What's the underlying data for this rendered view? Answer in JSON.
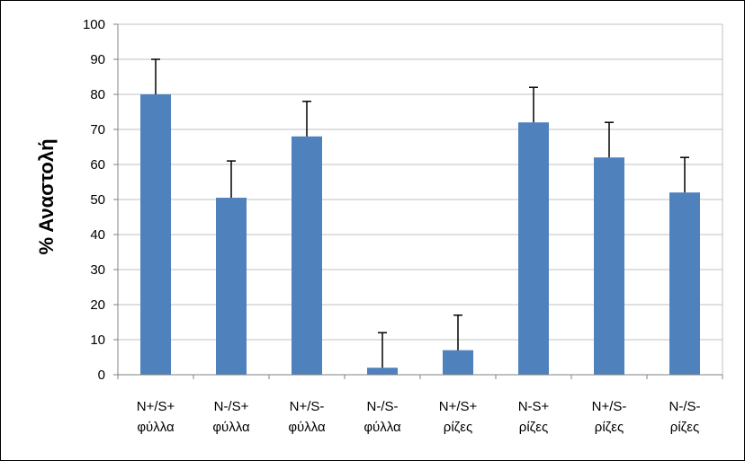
{
  "chart_data": {
    "type": "bar",
    "title": "",
    "xlabel": "",
    "ylabel": "% Αναστολή",
    "ylim": [
      0,
      100
    ],
    "yticks": [
      "0",
      "10",
      "20",
      "30",
      "40",
      "50",
      "60",
      "70",
      "80",
      "90",
      "100"
    ],
    "grid": true,
    "categories": [
      [
        "N+/S+",
        "φύλλα"
      ],
      [
        "N-/S+",
        "φύλλα"
      ],
      [
        "N+/S-",
        "φύλλα"
      ],
      [
        "N-/S-",
        "φύλλα"
      ],
      [
        "N+/S+",
        "ρίζες"
      ],
      [
        "N-S+",
        "ρίζες"
      ],
      [
        "N+/S-",
        "ρίζες"
      ],
      [
        "N-/S-",
        "ρίζες"
      ]
    ],
    "values": [
      80,
      50.5,
      68,
      2,
      7,
      72,
      62,
      52
    ],
    "error_upper": [
      90,
      61,
      78,
      12,
      17,
      82,
      72,
      62
    ],
    "bar_color": "#4f81bd",
    "error_color": "#000000",
    "grid_color": "#c0c0c0"
  }
}
